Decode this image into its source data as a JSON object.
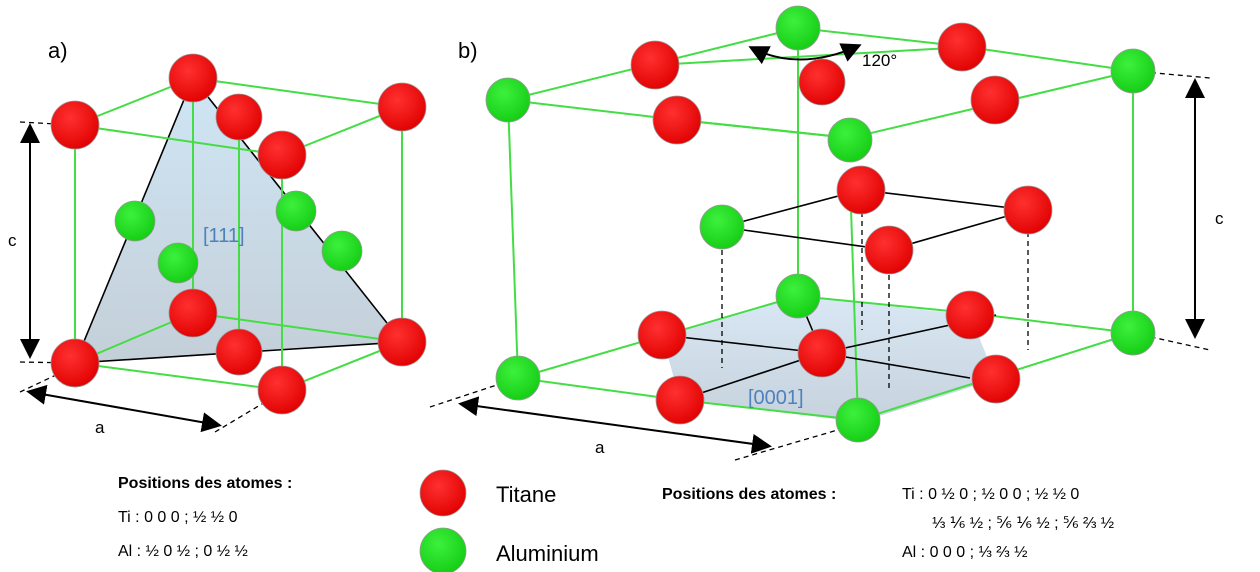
{
  "panel_a": {
    "label": "a)",
    "direction": "[111]",
    "axis_c": "c",
    "axis_a": "a",
    "positions_title": "Positions des atomes :",
    "ti_line": {
      "name": "Ti : ",
      "text": "0 0 0     ; ½ ½ 0"
    },
    "al_line": {
      "name": "Al : ",
      "text": "½ 0 ½ ; 0 ½ ½"
    }
  },
  "panel_b": {
    "label": "b)",
    "direction": "[0001]",
    "rotation": "120°",
    "axis_c": "c",
    "axis_a": "a",
    "positions_title": "Positions des atomes :",
    "ti_line1": {
      "name": "Ti : ",
      "text": "0 ½ 0    ; ½ 0 0      ; ½ ½ 0"
    },
    "ti_line2": "⅓ ⅙ ½ ; ⅚ ⅙ ½ ; ⅚ ⅔ ½",
    "al_line": {
      "name": "Al : ",
      "text": "0 0 0      ; ⅓ ⅔ ½"
    }
  },
  "legend": [
    {
      "label": "Titane",
      "color": "#ff0000"
    },
    {
      "label": "Aluminium",
      "color": "#22dd22"
    }
  ]
}
